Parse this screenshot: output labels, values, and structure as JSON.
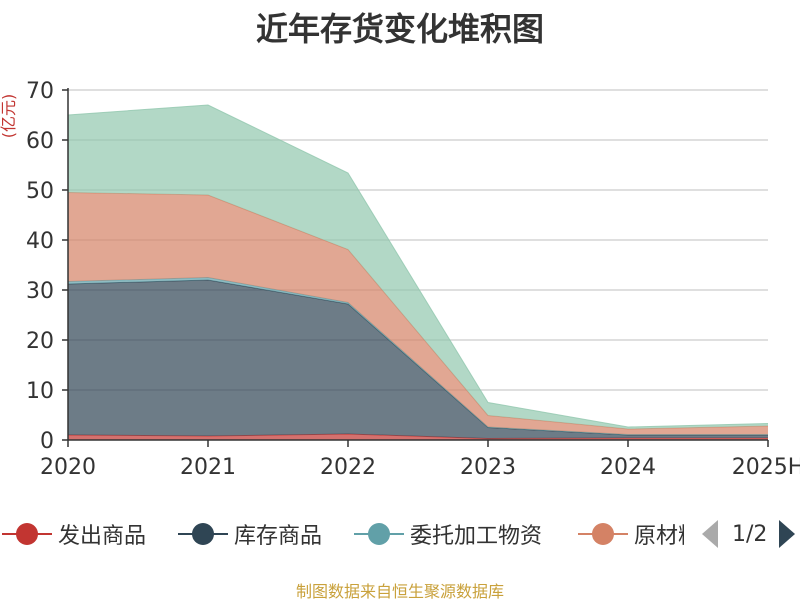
{
  "chart_data": {
    "type": "area",
    "title": "近年存货变化堆积图",
    "ylabel": "(亿元)",
    "xlabel": "",
    "categories": [
      "2020",
      "2021",
      "2022",
      "2023",
      "2024",
      "2025H"
    ],
    "ylim": [
      0,
      70
    ],
    "yticks": [
      0,
      10,
      20,
      30,
      40,
      50,
      60,
      70
    ],
    "stacked": true,
    "grid": true,
    "legend_position": "bottom",
    "series": [
      {
        "name": "发出商品",
        "color": "#c23531",
        "values": [
          1.0,
          0.8,
          1.2,
          0.3,
          0.4,
          0.4
        ]
      },
      {
        "name": "库存商品",
        "color": "#2f4554",
        "values": [
          30.2,
          31.2,
          26.0,
          2.2,
          0.6,
          0.6
        ]
      },
      {
        "name": "委托加工物资",
        "color": "#61a0a8",
        "values": [
          0.5,
          0.5,
          0.3,
          0.1,
          0.1,
          0.1
        ]
      },
      {
        "name": "原材料",
        "color": "#d48265",
        "values": [
          17.8,
          16.5,
          10.6,
          2.3,
          1.1,
          1.7
        ]
      },
      {
        "name": "",
        "color": "#91c7ae",
        "values": [
          15.5,
          18.0,
          15.3,
          2.6,
          0.4,
          0.5
        ]
      }
    ]
  },
  "legend": {
    "labels": [
      "发出商品",
      "库存商品",
      "委托加工物资",
      "原材料"
    ],
    "page_text": "1/2"
  },
  "footer": {
    "source": "制图数据来自恒生聚源数据库"
  }
}
